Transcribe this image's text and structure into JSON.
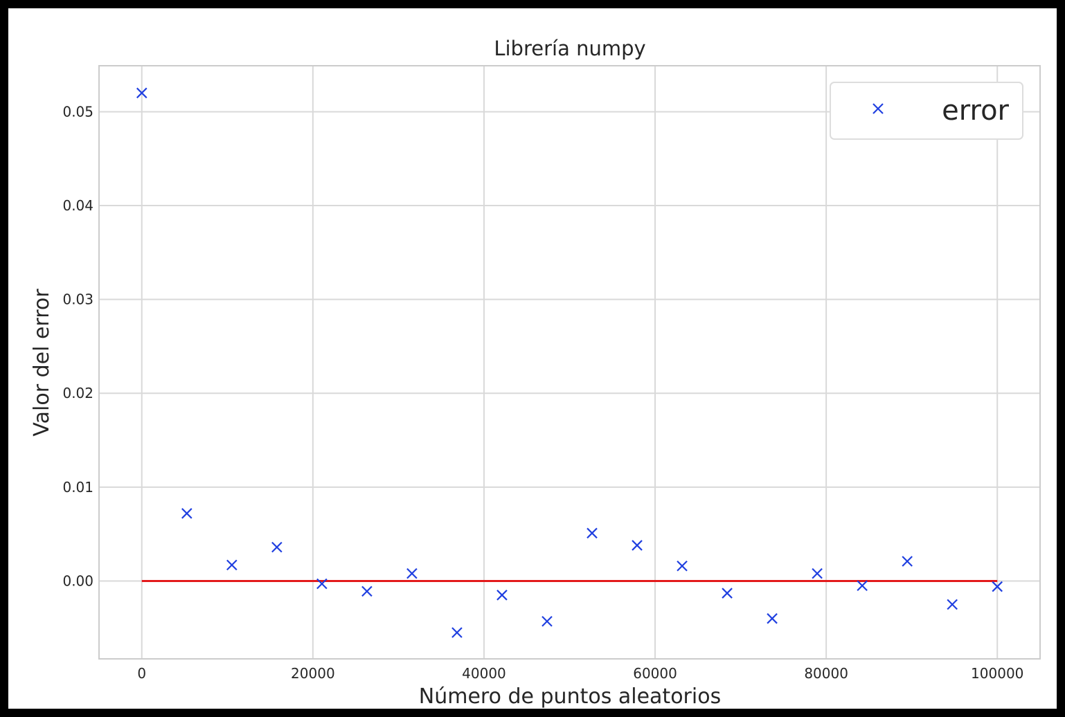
{
  "chart_data": {
    "type": "scatter",
    "title": "Librería numpy",
    "xlabel": "Número de puntos aleatorios",
    "ylabel": "Valor del error",
    "xlim": [
      -5000,
      105000
    ],
    "ylim": [
      -0.0083,
      0.0549
    ],
    "xticks": [
      0,
      20000,
      40000,
      60000,
      80000,
      100000
    ],
    "xtick_labels": [
      "0",
      "20000",
      "40000",
      "60000",
      "80000",
      "100000"
    ],
    "yticks": [
      0.0,
      0.01,
      0.02,
      0.03,
      0.04,
      0.05
    ],
    "ytick_labels": [
      "0.00",
      "0.01",
      "0.02",
      "0.03",
      "0.04",
      "0.05"
    ],
    "grid": true,
    "legend_position": "top-right",
    "series": [
      {
        "name": "error",
        "marker": "x",
        "color": "#1f3fe0",
        "x": [
          0,
          5263,
          10526,
          15789,
          21053,
          26316,
          31579,
          36842,
          42105,
          47368,
          52632,
          57895,
          63158,
          68421,
          73684,
          78947,
          84211,
          89474,
          94737,
          100000
        ],
        "y": [
          0.052,
          0.0072,
          0.0017,
          0.0036,
          -0.0003,
          -0.0011,
          0.0008,
          -0.0055,
          -0.0015,
          -0.0043,
          0.0051,
          0.0038,
          0.0016,
          -0.0013,
          -0.004,
          0.0008,
          -0.0005,
          0.0021,
          -0.0025,
          -0.0006
        ]
      }
    ],
    "reference_line": {
      "y": 0.0,
      "x_range": [
        0,
        100000
      ],
      "color": "#e31a1c"
    }
  }
}
